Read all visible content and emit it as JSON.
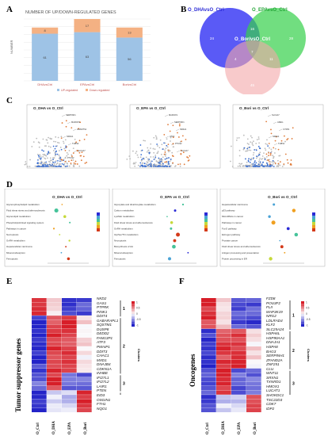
{
  "panels": {
    "A": {
      "letter": "A"
    },
    "B": {
      "letter": "B"
    },
    "C": {
      "letter": "C"
    },
    "D": {
      "letter": "D"
    },
    "E": {
      "letter": "E"
    },
    "F": {
      "letter": "F"
    }
  },
  "chart_data": [
    {
      "type": "bar",
      "title": "NUMBER OF UP/DOWN-REGULATED GENES",
      "ylabel": "NUMBER",
      "categories": [
        "DHAvsCtrl",
        "EPAvsCtrl",
        "BorivsCtrl"
      ],
      "series": [
        {
          "name": "UP-regulated",
          "color": "#9ec3e6",
          "values": [
            61,
            63,
            56
          ]
        },
        {
          "name": "Down-regulated",
          "color": "#f4b183",
          "values": [
            8,
            17,
            13
          ]
        }
      ],
      "ylim": [
        0,
        80
      ],
      "legend": "bottom"
    }
  ],
  "venn": {
    "sets": [
      {
        "name": "O_DHAvsO_Ctrl",
        "color": "#3d3df5"
      },
      {
        "name": "O_EPAvsO_Ctrl",
        "color": "#34d04a"
      },
      {
        "name": "O_BorivsO_Ctrl",
        "color": "#f3a6a8"
      }
    ],
    "regions": {
      "a_only": "24",
      "b_only": "28",
      "c_only": "45",
      "ab": "16",
      "bc": "11",
      "ac": "4",
      "abc": "7"
    }
  },
  "volcano": [
    {
      "title": "O_DHA vs O_Ctrl",
      "labels": [
        "SERPINF1",
        "MARCKS",
        "ADAMTS1",
        "NR4A1",
        "THBS2",
        "SLC4A7",
        "PTGS2"
      ]
    },
    {
      "title": "O_EPA vs O_Ctrl",
      "labels": [
        "MARCKS",
        "SERPINF1",
        "NR4A1",
        "ATF3",
        "PTGS2",
        "SLC4A7"
      ]
    },
    {
      "title": "O_Bori vs O_Ctrl",
      "labels": [
        "SLC4A7",
        "AREG",
        "CYR61",
        "NR4A1",
        "THBS1"
      ]
    }
  ],
  "enrichment": [
    {
      "title": "O_DHA vs O_Ctrl",
      "terms": [
        "Glycerophospholipid metabolism",
        "Fluid shear stress and atherosclerosis",
        "Glycerolipid metabolism",
        "Phospholipid-linked signaling system",
        "Pathways in cancer",
        "Necroptosis",
        "GnRH metabolism",
        "Hepatocellular carcinoma",
        "Mineral absorption",
        "Ferroptosis"
      ]
    },
    {
      "title": "O_EPA vs O_Ctrl",
      "terms": [
        "Glyoxylate and dicarboxylate metabolism",
        "Carbon metabolism",
        "Lys/Met metabolism",
        "Fluid shear stress and atherosclerosis",
        "GnRH metabolism",
        "Gly/Ser/Thr metabolism",
        "Necroptosis",
        "Biosynthesis of AA",
        "Mineral absorption",
        "Ferroptosis"
      ]
    },
    {
      "title": "O_Bori vs O_Ctrl",
      "terms": [
        "Hepatocellular carcinoma",
        "p53 pathway",
        "MicroRNAs in cancer",
        "Pathways in cancer",
        "FoxO pathway",
        "Estrogen pathway",
        "Prostate cancer",
        "Fluid shear stress and atherosclerosis",
        "Antigen processing and presentation",
        "Protein processing in ER"
      ]
    }
  ],
  "heatmap_E": {
    "ylabel": "Tumor suppressor genes",
    "legend_title": "Clusters",
    "columns": [
      "O_Ctrl",
      "O_DHA",
      "O_EPA",
      "O_Bori"
    ],
    "genes": [
      "NKD2",
      "GAS1",
      "PTPRK",
      "PINK1",
      "DDIT4",
      "GABARAPL1",
      "SQSTM1",
      "DUSP8",
      "DEDD2",
      "FAM13P1",
      "ATF3",
      "PMAIP1",
      "DDIT3",
      "CHAC1",
      "MXD1",
      "DNAJB4",
      "CDKN1A",
      "INHBE",
      "IFI27L1",
      "IFI27L2",
      "LAIR1",
      "PTEN",
      "EID3",
      "OSGIN1",
      "FTH1",
      "NQO1"
    ],
    "clusters": [
      "1",
      "2",
      "3",
      "4"
    ],
    "scale": [
      "1",
      "0.5",
      "0",
      "-0.5",
      "-1"
    ]
  },
  "heatmap_F": {
    "ylabel": "Oncogenes",
    "legend_title": "Clusters",
    "columns": [
      "O_Ctrl",
      "O_DHA",
      "O_EPA",
      "O_Bori"
    ],
    "genes": [
      "FZD8",
      "POU3F2",
      "FLII",
      "MAP3K19",
      "NRG2",
      "LDLRAD4",
      "KLF2",
      "SLC25A24",
      "HSPA6L",
      "HSP90AA1",
      "DNAJA1",
      "HSPA8",
      "BAG3",
      "SERPINH1",
      "ZFAND2A",
      "ZNF251",
      "CLU",
      "WNT11",
      "SRXN1",
      "TXNRD1",
      "HMOX1",
      "LUCAT1",
      "SHOKDC1",
      "TSC22D3",
      "CDK7",
      "IDP2"
    ],
    "clusters": [
      "1",
      "2",
      "3",
      "4"
    ],
    "scale": [
      "1",
      "0.5",
      "0",
      "-0.5",
      "-1"
    ]
  }
}
